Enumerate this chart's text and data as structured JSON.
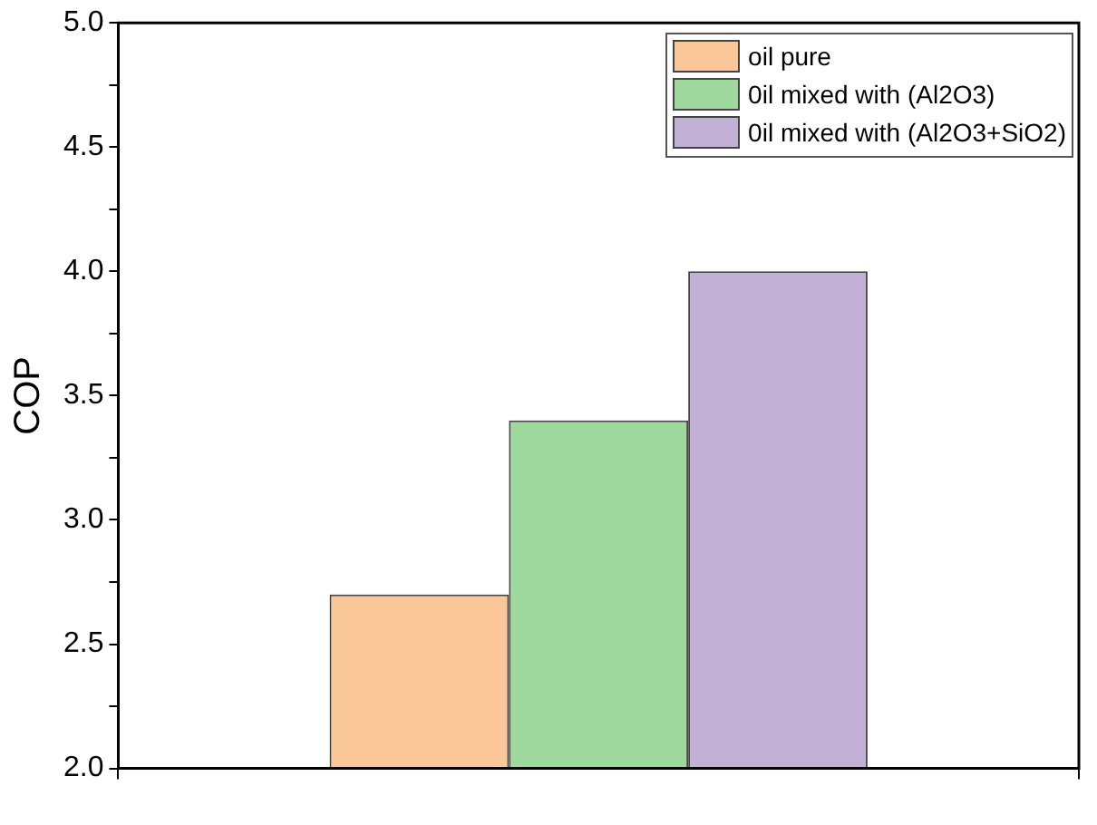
{
  "chart_data": {
    "type": "bar",
    "ylabel": "COP",
    "categories": [
      null
    ],
    "series": [
      {
        "name": "oil pure",
        "color": "#fac898",
        "values": [
          2.7
        ]
      },
      {
        "name": "0il mixed with (Al2O3)",
        "color": "#9fd89c",
        "values": [
          3.4
        ]
      },
      {
        "name": "0il mixed with (Al2O3+SiO2)",
        "color": "#c2b0d6",
        "values": [
          4.0
        ]
      }
    ],
    "ylim": [
      2,
      5
    ],
    "yticks": [
      {
        "value": 2,
        "label": "2.0"
      },
      {
        "value": 2.25,
        "label": null
      },
      {
        "value": 2.5,
        "label": "2.5"
      },
      {
        "value": 2.75,
        "label": null
      },
      {
        "value": 3,
        "label": "3.0"
      },
      {
        "value": 3.25,
        "label": null
      },
      {
        "value": 3.5,
        "label": "3.5"
      },
      {
        "value": 3.75,
        "label": null
      },
      {
        "value": 4,
        "label": "4.0"
      },
      {
        "value": 4.25,
        "label": null
      },
      {
        "value": 4.5,
        "label": "4.5"
      },
      {
        "value": 4.75,
        "label": null
      },
      {
        "value": 5,
        "label": "5.0"
      }
    ],
    "grid": false,
    "legend": "top right"
  }
}
